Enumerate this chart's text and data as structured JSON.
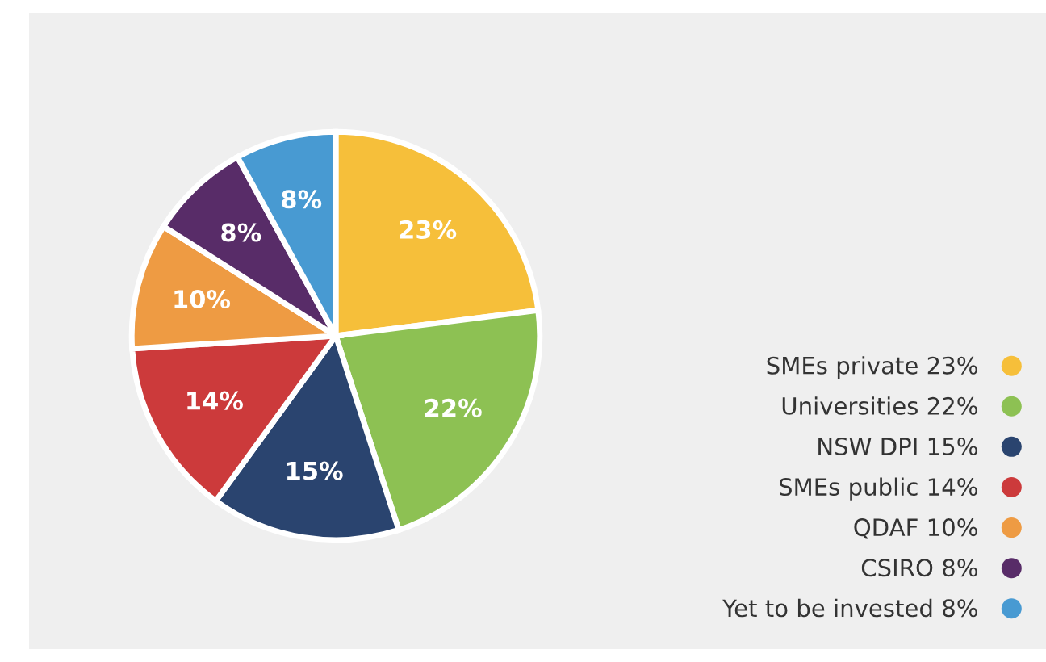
{
  "chart_data": {
    "type": "pie",
    "categories": [
      "SMEs private 23%",
      "Universities 22%",
      "NSW DPI 15%",
      "SMEs public 14%",
      "QDAF 10%",
      "CSIRO 8%",
      "Yet to be invested 8%"
    ],
    "values": [
      23,
      22,
      15,
      14,
      10,
      8,
      8
    ],
    "value_labels": [
      "23%",
      "22%",
      "15%",
      "14%",
      "10%",
      "8%",
      "8%"
    ],
    "colors": [
      "#f6bf3a",
      "#8dc153",
      "#2a446f",
      "#cc3a3b",
      "#ee9b43",
      "#582c68",
      "#489ad2"
    ],
    "legend": "right"
  }
}
